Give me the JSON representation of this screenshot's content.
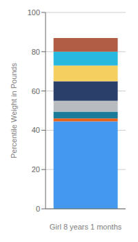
{
  "chart_data": {
    "type": "bar",
    "stacked": true,
    "xlabel": "Girl 8 years 1 months",
    "ylabel": "Percentile Weight in Pounds",
    "categories": [
      null
    ],
    "series": [
      {
        "color": "#4499ee",
        "values": [
          44.5
        ]
      },
      {
        "color": "#e8601a",
        "values": [
          1.5
        ]
      },
      {
        "color": "#1a7a99",
        "values": [
          3.5
        ]
      },
      {
        "color": "#b8bcbe",
        "values": [
          5.5
        ]
      },
      {
        "color": "#2b3f6b",
        "values": [
          10.0
        ]
      },
      {
        "color": "#f5d060",
        "values": [
          8.0
        ]
      },
      {
        "color": "#29b8e0",
        "values": [
          7.0
        ]
      },
      {
        "color": "#b05c44",
        "values": [
          7.0
        ]
      }
    ],
    "ylim": [
      0,
      100
    ],
    "yticks": [
      0,
      20,
      40,
      60,
      80,
      100
    ],
    "grid": true
  }
}
